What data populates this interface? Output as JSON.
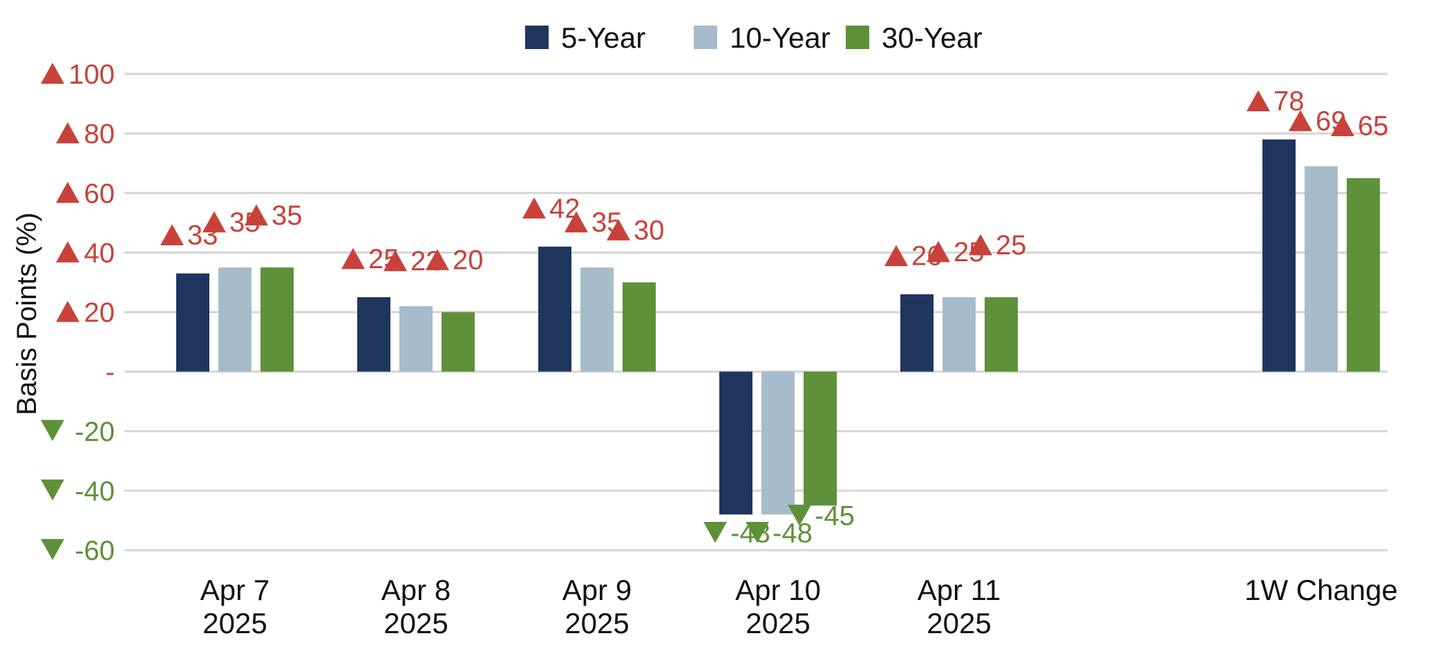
{
  "chart_data": {
    "type": "bar",
    "title": "",
    "xlabel": "",
    "ylabel": "Basis Points (%)",
    "ylim": [
      -60,
      100
    ],
    "grid": true,
    "legend_position": "top-center",
    "categories": [
      {
        "line1": "Apr 7",
        "line2": "2025"
      },
      {
        "line1": "Apr 8",
        "line2": "2025"
      },
      {
        "line1": "Apr 9",
        "line2": "2025"
      },
      {
        "line1": "Apr 10",
        "line2": "2025"
      },
      {
        "line1": "Apr 11",
        "line2": "2025"
      },
      {
        "line1": "",
        "line2": ""
      },
      {
        "line1": "1W Change",
        "line2": ""
      }
    ],
    "series": [
      {
        "name": "5-Year",
        "color": "#1e355e",
        "values": [
          33,
          25,
          42,
          -48,
          26,
          null,
          78
        ]
      },
      {
        "name": "10-Year",
        "color": "#a7bccb",
        "values": [
          35,
          22,
          35,
          -48,
          25,
          null,
          69
        ]
      },
      {
        "name": "30-Year",
        "color": "#5e913a",
        "values": [
          35,
          20,
          30,
          -45,
          25,
          null,
          65
        ]
      }
    ],
    "y_ticks": [
      {
        "value": 100,
        "label": "100",
        "marker": "up"
      },
      {
        "value": 80,
        "label": "80",
        "marker": "up"
      },
      {
        "value": 60,
        "label": "60",
        "marker": "up"
      },
      {
        "value": 40,
        "label": "40",
        "marker": "up"
      },
      {
        "value": 20,
        "label": "20",
        "marker": "up"
      },
      {
        "value": 0,
        "label": "-",
        "marker": "none"
      },
      {
        "value": -20,
        "label": "-20",
        "marker": "down"
      },
      {
        "value": -40,
        "label": "-40",
        "marker": "down"
      },
      {
        "value": -60,
        "label": "-60",
        "marker": "down"
      }
    ],
    "positive_color": "#c8423a",
    "negative_color": "#5e913a"
  }
}
